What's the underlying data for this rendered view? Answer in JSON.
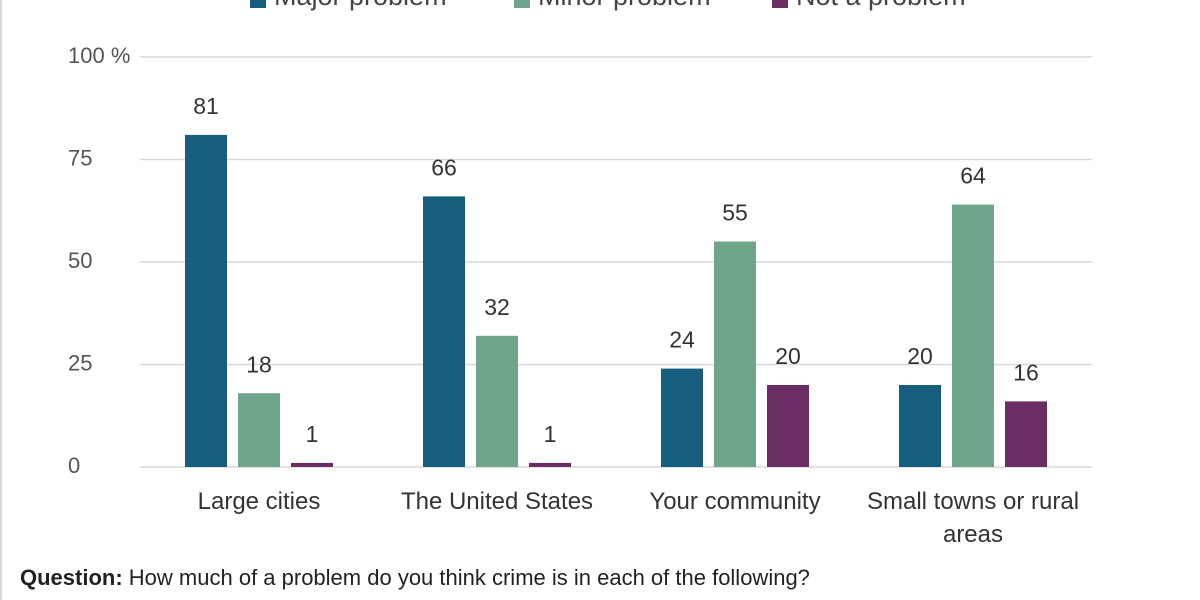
{
  "chart_data": {
    "type": "grouped_bar",
    "categories": [
      "Large cities",
      "The United States",
      "Your community",
      "Small towns or rural areas"
    ],
    "series": [
      {
        "name": "Major problem",
        "color": "#175e7e",
        "values": [
          81,
          66,
          24,
          20
        ]
      },
      {
        "name": "Minor problem",
        "color": "#6fa58a",
        "values": [
          18,
          32,
          55,
          64
        ]
      },
      {
        "name": "Not a problem",
        "color": "#6a2d64",
        "values": [
          1,
          1,
          20,
          16
        ]
      }
    ],
    "ylim": [
      0,
      100
    ],
    "yticks": [
      0,
      25,
      50,
      75,
      {
        "value": 100,
        "label": "100 %"
      }
    ],
    "grid": true,
    "legend": "top",
    "note_label": "Question:",
    "note": "How much of a problem do you think crime is in each of the following?"
  }
}
